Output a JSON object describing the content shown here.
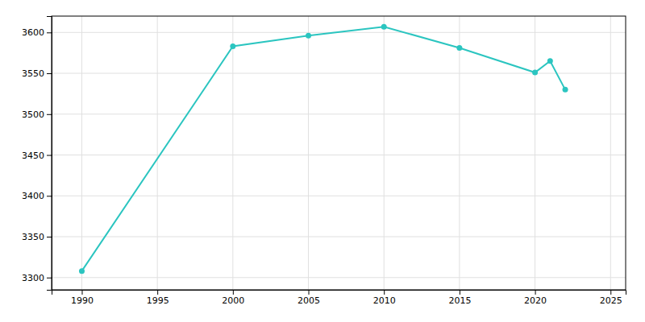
{
  "chart_data": {
    "type": "line",
    "x": [
      1990,
      2000,
      2005,
      2010,
      2015,
      2020,
      2021,
      2022
    ],
    "values": [
      3308,
      3583,
      3596,
      3607,
      3581,
      3551,
      3565,
      3530
    ],
    "color": "#2bc5c0",
    "marker": "circle",
    "xlim": [
      1988,
      2026
    ],
    "ylim": [
      3285,
      3620
    ],
    "xticks": [
      1990,
      1995,
      2000,
      2005,
      2010,
      2015,
      2020,
      2025
    ],
    "yticks": [
      3300,
      3350,
      3400,
      3450,
      3500,
      3550,
      3600
    ],
    "grid": true
  }
}
